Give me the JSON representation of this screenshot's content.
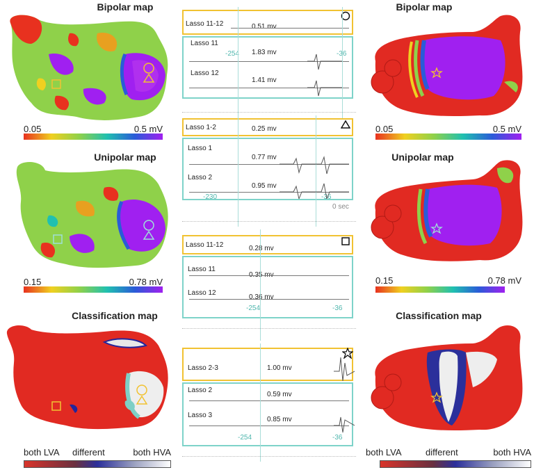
{
  "titles": {
    "bipolar_left": "Bipolar map",
    "bipolar_right": "Bipolar map",
    "unipolar_left": "Unipolar map",
    "unipolar_right": "Unipolar map",
    "class_left": "Classification map",
    "class_right": "Classification map"
  },
  "scales": {
    "bipolar": {
      "min": "0.05",
      "max": "0.5 mV"
    },
    "unipolar": {
      "min": "0.15",
      "max": "0.78 mV"
    },
    "classification": {
      "low": "both LVA",
      "mid": "different",
      "high": "both HVA"
    }
  },
  "panels": [
    {
      "header": {
        "name": "Lasso 11-12",
        "mv": "0.51 mv"
      },
      "rows": [
        {
          "name": "Lasso 11",
          "mv": "1.83 mv"
        },
        {
          "name": "Lasso 12",
          "mv": "1.41 mv"
        }
      ],
      "ticks": {
        "left": "-254",
        "right": "-36",
        "extra": ""
      }
    },
    {
      "header": {
        "name": "Lasso 1-2",
        "mv": "0.25 mv"
      },
      "rows": [
        {
          "name": "Lasso 1",
          "mv": "0.77 mv"
        },
        {
          "name": "Lasso 2",
          "mv": "0.95 mv"
        }
      ],
      "ticks": {
        "left": "-230",
        "right": "-36",
        "extra": "0 sec"
      }
    },
    {
      "header": {
        "name": "Lasso 11-12",
        "mv": "0.28 mv"
      },
      "rows": [
        {
          "name": "Lasso 11",
          "mv": "0.35 mv"
        },
        {
          "name": "Lasso 12",
          "mv": "0.36 mv"
        }
      ],
      "ticks": {
        "left": "-254",
        "right": "-36",
        "extra": ""
      }
    },
    {
      "header": {
        "name": "Lasso 2-3",
        "mv": "1.00 mv"
      },
      "rows": [
        {
          "name": "Lasso 2",
          "mv": "0.59 mv"
        },
        {
          "name": "Lasso 3",
          "mv": "0.85 mv"
        }
      ],
      "ticks": {
        "left": "-254",
        "right": "-36",
        "extra": ""
      }
    }
  ],
  "colors": {
    "yellow": "#f1c232",
    "cyan": "#7ed3c9",
    "lva": "#d9342b",
    "different": "#2b2f9b",
    "hva": "#ffffff"
  }
}
